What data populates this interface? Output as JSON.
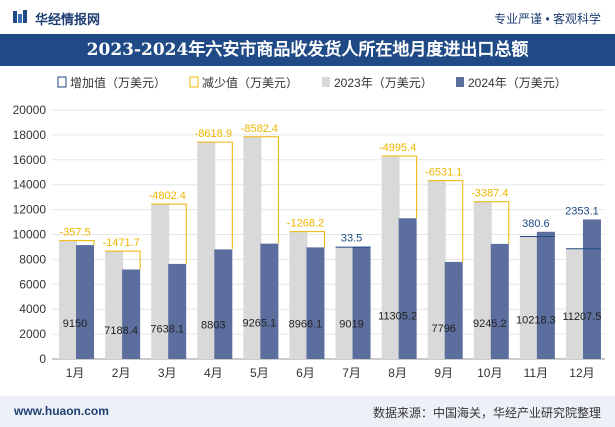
{
  "header": {
    "brand": "华经情报网",
    "slogan": "专业严谨 • 客观科学"
  },
  "footer": {
    "website": "www.huaon.com",
    "source": "数据来源：中国海关，华经产业研究院整理"
  },
  "colors": {
    "series2023": "#d9d9d9",
    "series2024": "#5b6e9e",
    "increase": "#1f4a86",
    "decrease": "#f0b400"
  },
  "chart_data": {
    "type": "bar",
    "title": "2023-2024年六安市商品收发货人所在地月度进出口总额",
    "xlabel": "",
    "ylabel": "",
    "ylim": [
      0,
      20000
    ],
    "yticks": [
      0,
      2000,
      4000,
      6000,
      8000,
      10000,
      12000,
      14000,
      16000,
      18000,
      20000
    ],
    "categories": [
      "1月",
      "2月",
      "3月",
      "4月",
      "5月",
      "6月",
      "7月",
      "8月",
      "9月",
      "10月",
      "11月",
      "12月"
    ],
    "legend_position": "top",
    "legend": {
      "increase": "增加值（万美元）",
      "decrease": "减少值（万美元）",
      "y2023": "2023年（万美元）",
      "y2024": "2024年（万美元）"
    },
    "series": [
      {
        "name": "2023年（万美元）",
        "values": [
          9507.5,
          8660.1,
          12440.5,
          17421.8,
          17847.5,
          10234.3,
          8985.5,
          16300.6,
          14327.1,
          12632.6,
          9837.7,
          8854.4
        ]
      },
      {
        "name": "2024年（万美元）",
        "values": [
          9150,
          7188.4,
          7638.1,
          8803,
          9265.1,
          8966.1,
          9019,
          11305.2,
          7796,
          9245.2,
          10218.3,
          11207.5
        ]
      }
    ],
    "change_labels": [
      "-357.5",
      "-1471.7",
      "-4802.4",
      "-8618.9",
      "-8582.4",
      "-1268.2",
      "33.5",
      "-4995.4",
      "-6531.1",
      "-3387.4",
      "380.6",
      "2353.1"
    ],
    "value_labels_2024": [
      "9150",
      "7188.4",
      "7638.1",
      "8803",
      "9265.1",
      "8966.1",
      "9019",
      "11305.2",
      "7796",
      "9245.2",
      "10218.3",
      "11207.5"
    ]
  }
}
